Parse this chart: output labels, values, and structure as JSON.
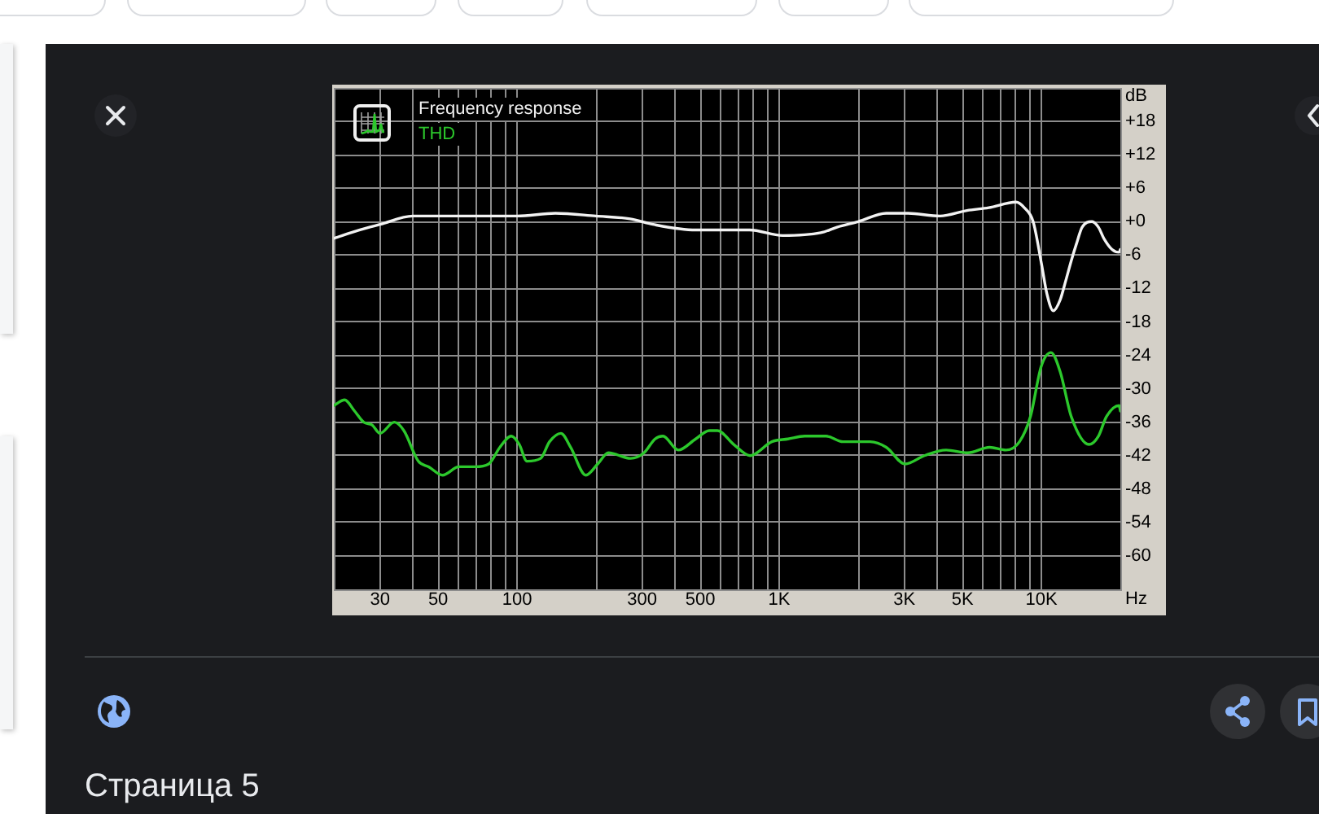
{
  "chart_data": {
    "type": "line",
    "xlabel": "Hz",
    "ylabel": "dB",
    "annotations": [
      "Страница 5"
    ],
    "log": "x",
    "grid": true,
    "legend": "top left",
    "xlim": [
      20,
      20000
    ],
    "ylim": [
      -66,
      24
    ],
    "xticks": [
      {
        "value": 20,
        "label": null
      },
      30,
      {
        "value": 40,
        "label": null
      },
      50,
      {
        "value": 60,
        "label": null
      },
      {
        "value": 70,
        "label": null
      },
      {
        "value": 80,
        "label": null
      },
      {
        "value": 90,
        "label": null
      },
      100,
      {
        "value": 200,
        "label": null
      },
      300,
      {
        "value": 400,
        "label": null
      },
      500,
      {
        "value": 600,
        "label": null
      },
      {
        "value": 700,
        "label": null
      },
      {
        "value": 800,
        "label": null
      },
      {
        "value": 900,
        "label": null
      },
      {
        "value": 1000,
        "label": "1K"
      },
      {
        "value": 2000,
        "label": null
      },
      {
        "value": 3000,
        "label": "3K"
      },
      {
        "value": 4000,
        "label": null
      },
      {
        "value": 5000,
        "label": "5K"
      },
      {
        "value": 6000,
        "label": null
      },
      {
        "value": 7000,
        "label": null
      },
      {
        "value": 8000,
        "label": null
      },
      {
        "value": 9000,
        "label": null
      },
      {
        "value": 10000,
        "label": "10K"
      },
      {
        "value": 20000,
        "label": null
      }
    ],
    "yticks": [
      {
        "value": 24,
        "label": null
      },
      {
        "value": 18,
        "label": "+18"
      },
      {
        "value": 12,
        "label": "+12"
      },
      {
        "value": 6,
        "label": "+6"
      },
      {
        "value": 0,
        "label": "+0"
      },
      -6,
      -12,
      -18,
      -24,
      -30,
      -36,
      -42,
      -48,
      -54,
      -60
    ],
    "series": [
      {
        "name": "Frequency response",
        "color": "#f2f2f2",
        "x": [
          20,
          25,
          30,
          40,
          53,
          78,
          100,
          140,
          200,
          270,
          330,
          480,
          670,
          770,
          1030,
          1440,
          1660,
          2000,
          2560,
          3100,
          4100,
          5200,
          6300,
          8000,
          8600,
          9300,
          10000,
          10500,
          11100,
          11800,
          12400,
          13000,
          13600,
          14300,
          15600,
          16500,
          17300,
          18600,
          19800,
          20000
        ],
        "values": [
          -3,
          -1.5,
          -0.5,
          1,
          1,
          1,
          1,
          1.5,
          1,
          0.5,
          -0.5,
          -1.5,
          -1.5,
          -1.5,
          -2.5,
          -2,
          -1,
          0,
          1.5,
          1.5,
          1,
          2,
          2.5,
          3.5,
          2.5,
          0,
          -7.5,
          -13,
          -16,
          -14,
          -10.5,
          -7,
          -4,
          -1,
          0,
          -1,
          -3,
          -5,
          -5.5,
          -5
        ]
      },
      {
        "name": "THD",
        "color": "#2cc82c",
        "x": [
          20,
          22,
          24,
          26,
          28,
          30,
          34,
          37,
          42,
          46,
          52,
          60,
          69,
          78,
          86,
          95,
          102,
          109,
          123,
          133,
          147,
          160,
          183,
          203,
          223,
          271,
          305,
          336,
          360,
          412,
          480,
          541,
          581,
          671,
          774,
          937,
          1080,
          1250,
          1510,
          1750,
          2220,
          2560,
          3020,
          3580,
          4330,
          5240,
          6340,
          7320,
          8250,
          9080,
          9980,
          10880,
          11800,
          13000,
          15200,
          16500,
          17700,
          19800,
          20000
        ],
        "values": [
          -33,
          -32,
          -34,
          -36,
          -36.5,
          -38,
          -36,
          -37.5,
          -43,
          -44,
          -45.5,
          -44,
          -44,
          -43.5,
          -40.5,
          -38.5,
          -40,
          -43,
          -42.5,
          -39.5,
          -38,
          -40.5,
          -45.5,
          -43.5,
          -41.5,
          -42.5,
          -41.5,
          -39,
          -38.5,
          -41,
          -39,
          -37.5,
          -37.5,
          -40,
          -42,
          -39.5,
          -39,
          -38.5,
          -38.5,
          -39.5,
          -39.5,
          -40.5,
          -43.5,
          -42,
          -41,
          -41.5,
          -40.5,
          -41,
          -39.5,
          -35,
          -26,
          -23.5,
          -27,
          -35,
          -40,
          -38.5,
          -35,
          -33,
          -34
        ]
      }
    ]
  }
}
